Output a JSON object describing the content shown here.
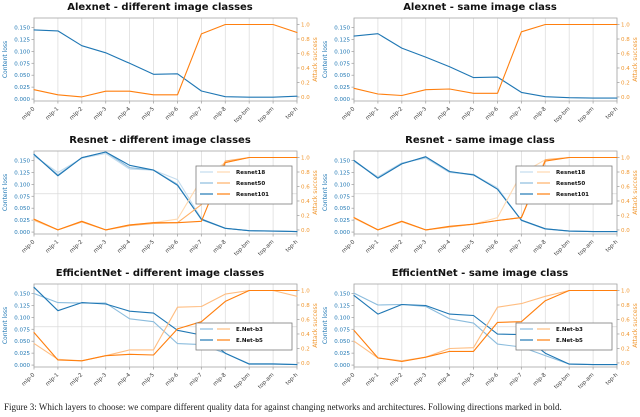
{
  "figure": {
    "caption": "Figure 3: Which layers to choose: we compare different quality data for against changing networks and architectures. Following directions marked in bold."
  },
  "axis": {
    "left_label": "Content loss",
    "right_label": "Attack success",
    "left_ticks": [
      "0.150",
      "0.125",
      "0.100",
      "0.075",
      "0.050",
      "0.025",
      "0.000"
    ],
    "left_tick_values": [
      0.15,
      0.125,
      0.1,
      0.075,
      0.05,
      0.025,
      0.0
    ],
    "right_ticks": [
      "1.0",
      "0.8",
      "0.6",
      "0.4",
      "0.2",
      "0.0"
    ],
    "right_tick_values": [
      1.0,
      0.8,
      0.6,
      0.4,
      0.2,
      0.0
    ],
    "left_color": "#1f77b4",
    "right_color": "#f0962e"
  },
  "categories": [
    "mlp-0",
    "mlp-1",
    "mlp-2",
    "mlp-3",
    "mlp-4",
    "mlp-5",
    "mlp-6",
    "mlp-7",
    "mlp-8",
    "top-bm",
    "top-am",
    "top-h"
  ],
  "chart_data": [
    {
      "type": "line",
      "title": "Alexnet - different image classes",
      "legend": null,
      "guide_y_right": null,
      "series": [
        {
          "name": "Content loss",
          "axis": "left",
          "color": "#1f77b4",
          "values": [
            0.145,
            0.143,
            0.112,
            0.097,
            0.075,
            0.052,
            0.053,
            0.017,
            0.005,
            0.004,
            0.004,
            0.006
          ]
        },
        {
          "name": "Attack success",
          "axis": "right",
          "color": "#ff7f0e",
          "values": [
            0.1,
            0.03,
            0.0,
            0.08,
            0.08,
            0.03,
            0.03,
            0.87,
            1.0,
            1.0,
            1.0,
            0.89
          ]
        }
      ]
    },
    {
      "type": "line",
      "title": "Alexnet - same image class",
      "legend": null,
      "guide_y_right": null,
      "series": [
        {
          "name": "Content loss",
          "axis": "left",
          "color": "#1f77b4",
          "values": [
            0.132,
            0.137,
            0.107,
            0.088,
            0.068,
            0.045,
            0.046,
            0.014,
            0.005,
            0.003,
            0.002,
            0.002
          ]
        },
        {
          "name": "Attack success",
          "axis": "right",
          "color": "#ff7f0e",
          "values": [
            0.12,
            0.04,
            0.02,
            0.1,
            0.11,
            0.05,
            0.05,
            0.9,
            1.0,
            1.0,
            1.0,
            1.0
          ]
        }
      ]
    },
    {
      "type": "line",
      "title": "Resnet - different image classes",
      "legend": [
        "Resnet18",
        "Resnet50",
        "Resnet101"
      ],
      "guide_y_right": 0.5,
      "series": [
        {
          "name": "Resnet18",
          "axis": "left",
          "color": "#c3dcee",
          "values": [
            0.16,
            0.125,
            0.155,
            0.165,
            0.132,
            0.13,
            0.11,
            0.028,
            0.008,
            0.003,
            0.002,
            0.001
          ]
        },
        {
          "name": "Resnet50",
          "axis": "left",
          "color": "#8bbcdd",
          "values": [
            0.162,
            0.12,
            0.156,
            0.168,
            0.135,
            0.13,
            0.1,
            0.026,
            0.008,
            0.003,
            0.002,
            0.001
          ]
        },
        {
          "name": "Resnet101",
          "axis": "left",
          "color": "#1f77b4",
          "values": [
            0.163,
            0.118,
            0.156,
            0.168,
            0.14,
            0.13,
            0.098,
            0.027,
            0.008,
            0.003,
            0.002,
            0.001
          ]
        },
        {
          "name": "Resnet18",
          "axis": "right",
          "color": "#ffd9b0",
          "values": [
            0.13,
            0.0,
            0.12,
            0.0,
            0.07,
            0.1,
            0.15,
            0.7,
            0.93,
            1.0,
            1.0,
            1.0
          ]
        },
        {
          "name": "Resnet50",
          "axis": "right",
          "color": "#ffb066",
          "values": [
            0.14,
            0.0,
            0.11,
            0.0,
            0.06,
            0.09,
            0.1,
            0.35,
            0.95,
            1.0,
            1.0,
            1.0
          ]
        },
        {
          "name": "Resnet101",
          "axis": "right",
          "color": "#ff7f0e",
          "values": [
            0.15,
            0.0,
            0.12,
            0.0,
            0.07,
            0.1,
            0.1,
            0.12,
            0.93,
            1.0,
            1.0,
            1.0
          ]
        }
      ]
    },
    {
      "type": "line",
      "title": "Resnet - same image class",
      "legend": [
        "Resnet18",
        "Resnet50",
        "Resnet101"
      ],
      "guide_y_right": 0.5,
      "series": [
        {
          "name": "Resnet18",
          "axis": "left",
          "color": "#c3dcee",
          "values": [
            0.148,
            0.116,
            0.145,
            0.155,
            0.125,
            0.12,
            0.093,
            0.024,
            0.006,
            0.002,
            0.001,
            0.001
          ]
        },
        {
          "name": "Resnet50",
          "axis": "left",
          "color": "#8bbcdd",
          "values": [
            0.15,
            0.114,
            0.144,
            0.157,
            0.126,
            0.121,
            0.09,
            0.025,
            0.007,
            0.002,
            0.001,
            0.001
          ]
        },
        {
          "name": "Resnet101",
          "axis": "left",
          "color": "#1f77b4",
          "values": [
            0.15,
            0.113,
            0.143,
            0.158,
            0.127,
            0.12,
            0.09,
            0.025,
            0.007,
            0.002,
            0.001,
            0.001
          ]
        },
        {
          "name": "Resnet18",
          "axis": "right",
          "color": "#ffd9b0",
          "values": [
            0.16,
            0.0,
            0.11,
            0.0,
            0.04,
            0.08,
            0.17,
            0.78,
            0.97,
            1.0,
            1.0,
            1.0
          ]
        },
        {
          "name": "Resnet50",
          "axis": "right",
          "color": "#ffb066",
          "values": [
            0.17,
            0.0,
            0.12,
            0.0,
            0.04,
            0.08,
            0.13,
            0.17,
            0.97,
            1.0,
            1.0,
            1.0
          ]
        },
        {
          "name": "Resnet101",
          "axis": "right",
          "color": "#ff7f0e",
          "values": [
            0.17,
            0.0,
            0.12,
            0.0,
            0.05,
            0.08,
            0.13,
            0.17,
            0.95,
            1.0,
            1.0,
            1.0
          ]
        }
      ]
    },
    {
      "type": "line",
      "title": "EfficientNet - different image classes",
      "legend": [
        "E.Net-b3",
        "E.Net-b5"
      ],
      "guide_y_right": 0.5,
      "series": [
        {
          "name": "E.Net-b3",
          "axis": "left",
          "color": "#8bbcdd",
          "values": [
            0.15,
            0.131,
            0.13,
            0.13,
            0.097,
            0.091,
            0.045,
            0.043,
            0.025,
            0.003,
            0.003,
            0.001
          ]
        },
        {
          "name": "E.Net-b5",
          "axis": "left",
          "color": "#1f77b4",
          "values": [
            0.163,
            0.114,
            0.131,
            0.128,
            0.113,
            0.109,
            0.073,
            0.063,
            0.025,
            0.002,
            0.002,
            0.001
          ]
        },
        {
          "name": "E.Net-b3",
          "axis": "right",
          "color": "#ffbd80",
          "values": [
            0.27,
            0.05,
            0.03,
            0.1,
            0.18,
            0.18,
            0.77,
            0.78,
            0.95,
            1.0,
            1.0,
            0.92
          ]
        },
        {
          "name": "E.Net-b5",
          "axis": "right",
          "color": "#ff7f0e",
          "values": [
            0.42,
            0.04,
            0.03,
            0.1,
            0.12,
            0.11,
            0.47,
            0.57,
            0.85,
            1.0,
            1.0,
            1.0
          ]
        }
      ]
    },
    {
      "type": "line",
      "title": "EfficientNet - same image class",
      "legend": [
        "E.Net-b3",
        "E.Net-b5"
      ],
      "guide_y_right": 0.5,
      "series": [
        {
          "name": "E.Net-b3",
          "axis": "left",
          "color": "#8bbcdd",
          "values": [
            0.151,
            0.126,
            0.127,
            0.123,
            0.097,
            0.088,
            0.044,
            0.038,
            0.02,
            0.002,
            0.001,
            0.001
          ]
        },
        {
          "name": "E.Net-b5",
          "axis": "left",
          "color": "#1f77b4",
          "values": [
            0.146,
            0.107,
            0.127,
            0.125,
            0.107,
            0.104,
            0.065,
            0.064,
            0.025,
            0.002,
            0.001,
            0.001
          ]
        },
        {
          "name": "E.Net-b3",
          "axis": "right",
          "color": "#ffbd80",
          "values": [
            0.3,
            0.07,
            0.03,
            0.08,
            0.2,
            0.21,
            0.77,
            0.82,
            0.92,
            1.0,
            1.0,
            1.0
          ]
        },
        {
          "name": "E.Net-b5",
          "axis": "right",
          "color": "#ff7f0e",
          "values": [
            0.45,
            0.07,
            0.02,
            0.08,
            0.16,
            0.16,
            0.56,
            0.57,
            0.86,
            1.0,
            1.0,
            1.0
          ]
        }
      ]
    }
  ],
  "colors": {
    "grid": "#d9d9d9",
    "frame": "#a6a6a6",
    "x_tick_label": "#404040"
  }
}
